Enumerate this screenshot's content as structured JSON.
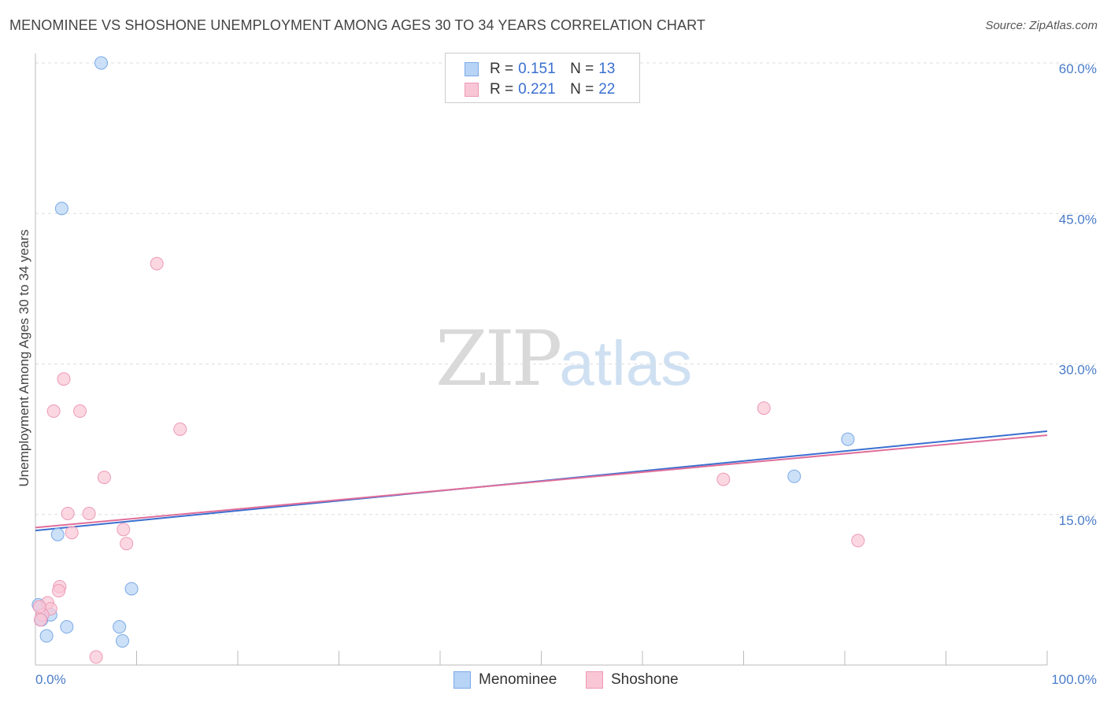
{
  "title": "MENOMINEE VS SHOSHONE UNEMPLOYMENT AMONG AGES 30 TO 34 YEARS CORRELATION CHART",
  "source": "Source: ZipAtlas.com",
  "watermark": {
    "zip": "ZIP",
    "atlas": "atlas"
  },
  "colors": {
    "menominee_fill": "#b7d3f5",
    "menominee_stroke": "#7aaae6",
    "menominee_line": "#3a6fd0",
    "shoshone_fill": "#f9c6d6",
    "shoshone_stroke": "#ec9ab6",
    "shoshone_line": "#e06e9a",
    "tick_label": "#4a7cc9"
  },
  "legend": {
    "rows": [
      {
        "series": "Menominee",
        "r_label": "R =",
        "r_value": "0.151",
        "n_label": "N =",
        "n_value": "13"
      },
      {
        "series": "Shoshone",
        "r_label": "R =",
        "r_value": "0.221",
        "n_label": "N =",
        "n_value": "22"
      }
    ]
  },
  "bottom_legend": {
    "menominee": "Menominee",
    "shoshone": "Shoshone"
  },
  "chart_data": {
    "type": "scatter",
    "title": "MENOMINEE VS SHOSHONE UNEMPLOYMENT AMONG AGES 30 TO 34 YEARS CORRELATION CHART",
    "xlabel": "",
    "ylabel": "Unemployment Among Ages 30 to 34 years",
    "xlim": [
      0,
      100
    ],
    "ylim": [
      0,
      60
    ],
    "x_tick_labels": [
      {
        "value": 0,
        "label": "0.0%"
      },
      {
        "value": 100,
        "label": "100.0%"
      }
    ],
    "y_tick_labels": [
      {
        "value": 15,
        "label": "15.0%"
      },
      {
        "value": 30,
        "label": "30.0%"
      },
      {
        "value": 45,
        "label": "45.0%"
      },
      {
        "value": 60,
        "label": "60.0%"
      }
    ],
    "grid": "horizontal dashed",
    "series": [
      {
        "name": "Menominee",
        "r": 0.151,
        "n": 13,
        "points": [
          {
            "x": 6.5,
            "y": 60.0
          },
          {
            "x": 2.6,
            "y": 45.5
          },
          {
            "x": 2.2,
            "y": 13.0
          },
          {
            "x": 9.5,
            "y": 7.6
          },
          {
            "x": 0.3,
            "y": 6.0
          },
          {
            "x": 1.5,
            "y": 5.0
          },
          {
            "x": 0.6,
            "y": 4.5
          },
          {
            "x": 3.1,
            "y": 3.8
          },
          {
            "x": 8.3,
            "y": 3.8
          },
          {
            "x": 1.1,
            "y": 2.9
          },
          {
            "x": 8.6,
            "y": 2.4
          },
          {
            "x": 75.0,
            "y": 18.8
          },
          {
            "x": 80.3,
            "y": 22.5
          }
        ],
        "trend": {
          "x0": 0,
          "y0": 13.4,
          "x1": 100,
          "y1": 23.3
        }
      },
      {
        "name": "Shoshone",
        "r": 0.221,
        "n": 22,
        "points": [
          {
            "x": 12.0,
            "y": 40.0
          },
          {
            "x": 2.8,
            "y": 28.5
          },
          {
            "x": 1.8,
            "y": 25.3
          },
          {
            "x": 4.4,
            "y": 25.3
          },
          {
            "x": 14.3,
            "y": 23.5
          },
          {
            "x": 6.8,
            "y": 18.7
          },
          {
            "x": 3.2,
            "y": 15.1
          },
          {
            "x": 5.3,
            "y": 15.1
          },
          {
            "x": 8.7,
            "y": 13.5
          },
          {
            "x": 3.6,
            "y": 13.2
          },
          {
            "x": 9.0,
            "y": 12.1
          },
          {
            "x": 2.4,
            "y": 7.8
          },
          {
            "x": 2.3,
            "y": 7.4
          },
          {
            "x": 1.2,
            "y": 6.2
          },
          {
            "x": 1.5,
            "y": 5.6
          },
          {
            "x": 0.7,
            "y": 5.0
          },
          {
            "x": 0.5,
            "y": 4.5
          },
          {
            "x": 6.0,
            "y": 0.8
          },
          {
            "x": 68.0,
            "y": 18.5
          },
          {
            "x": 72.0,
            "y": 25.6
          },
          {
            "x": 81.3,
            "y": 12.4
          },
          {
            "x": 0.4,
            "y": 5.8
          }
        ],
        "trend": {
          "x0": 0,
          "y0": 13.7,
          "x1": 100,
          "y1": 22.9
        }
      }
    ]
  }
}
